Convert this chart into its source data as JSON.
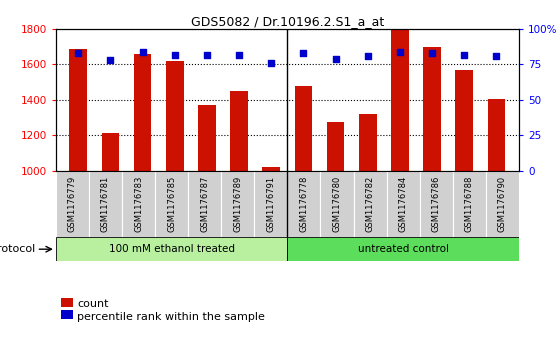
{
  "title": "GDS5082 / Dr.10196.2.S1_a_at",
  "samples": [
    "GSM1176779",
    "GSM1176781",
    "GSM1176783",
    "GSM1176785",
    "GSM1176787",
    "GSM1176789",
    "GSM1176791",
    "GSM1176778",
    "GSM1176780",
    "GSM1176782",
    "GSM1176784",
    "GSM1176786",
    "GSM1176788",
    "GSM1176790"
  ],
  "counts": [
    1690,
    1210,
    1660,
    1620,
    1370,
    1450,
    1020,
    1480,
    1275,
    1320,
    1800,
    1700,
    1570,
    1405
  ],
  "percentiles": [
    83,
    78,
    84,
    82,
    82,
    82,
    76,
    83,
    79,
    81,
    84,
    83,
    82,
    81
  ],
  "groups": [
    {
      "label": "100 mM ethanol treated",
      "count": 7,
      "color": "#90ee90"
    },
    {
      "label": "untreated control",
      "count": 7,
      "color": "#5cdd5c"
    }
  ],
  "group_separator": 7,
  "ylim_left": [
    1000,
    1800
  ],
  "ylim_right": [
    0,
    100
  ],
  "yticks_left": [
    1000,
    1200,
    1400,
    1600,
    1800
  ],
  "yticks_right": [
    0,
    25,
    50,
    75,
    100
  ],
  "yticklabels_right": [
    "0",
    "25",
    "50",
    "75",
    "100%"
  ],
  "bar_color": "#cc1100",
  "dot_color": "#0000cc",
  "bar_width": 0.55,
  "protocol_label": "protocol",
  "legend_count_label": "count",
  "legend_percentile_label": "percentile rank within the sample",
  "bg_plot": "#ffffff",
  "bg_xticklabels": "#c8c8c8",
  "bg_groups_1": "#b8f0a0",
  "bg_groups_2": "#5cdd5c"
}
